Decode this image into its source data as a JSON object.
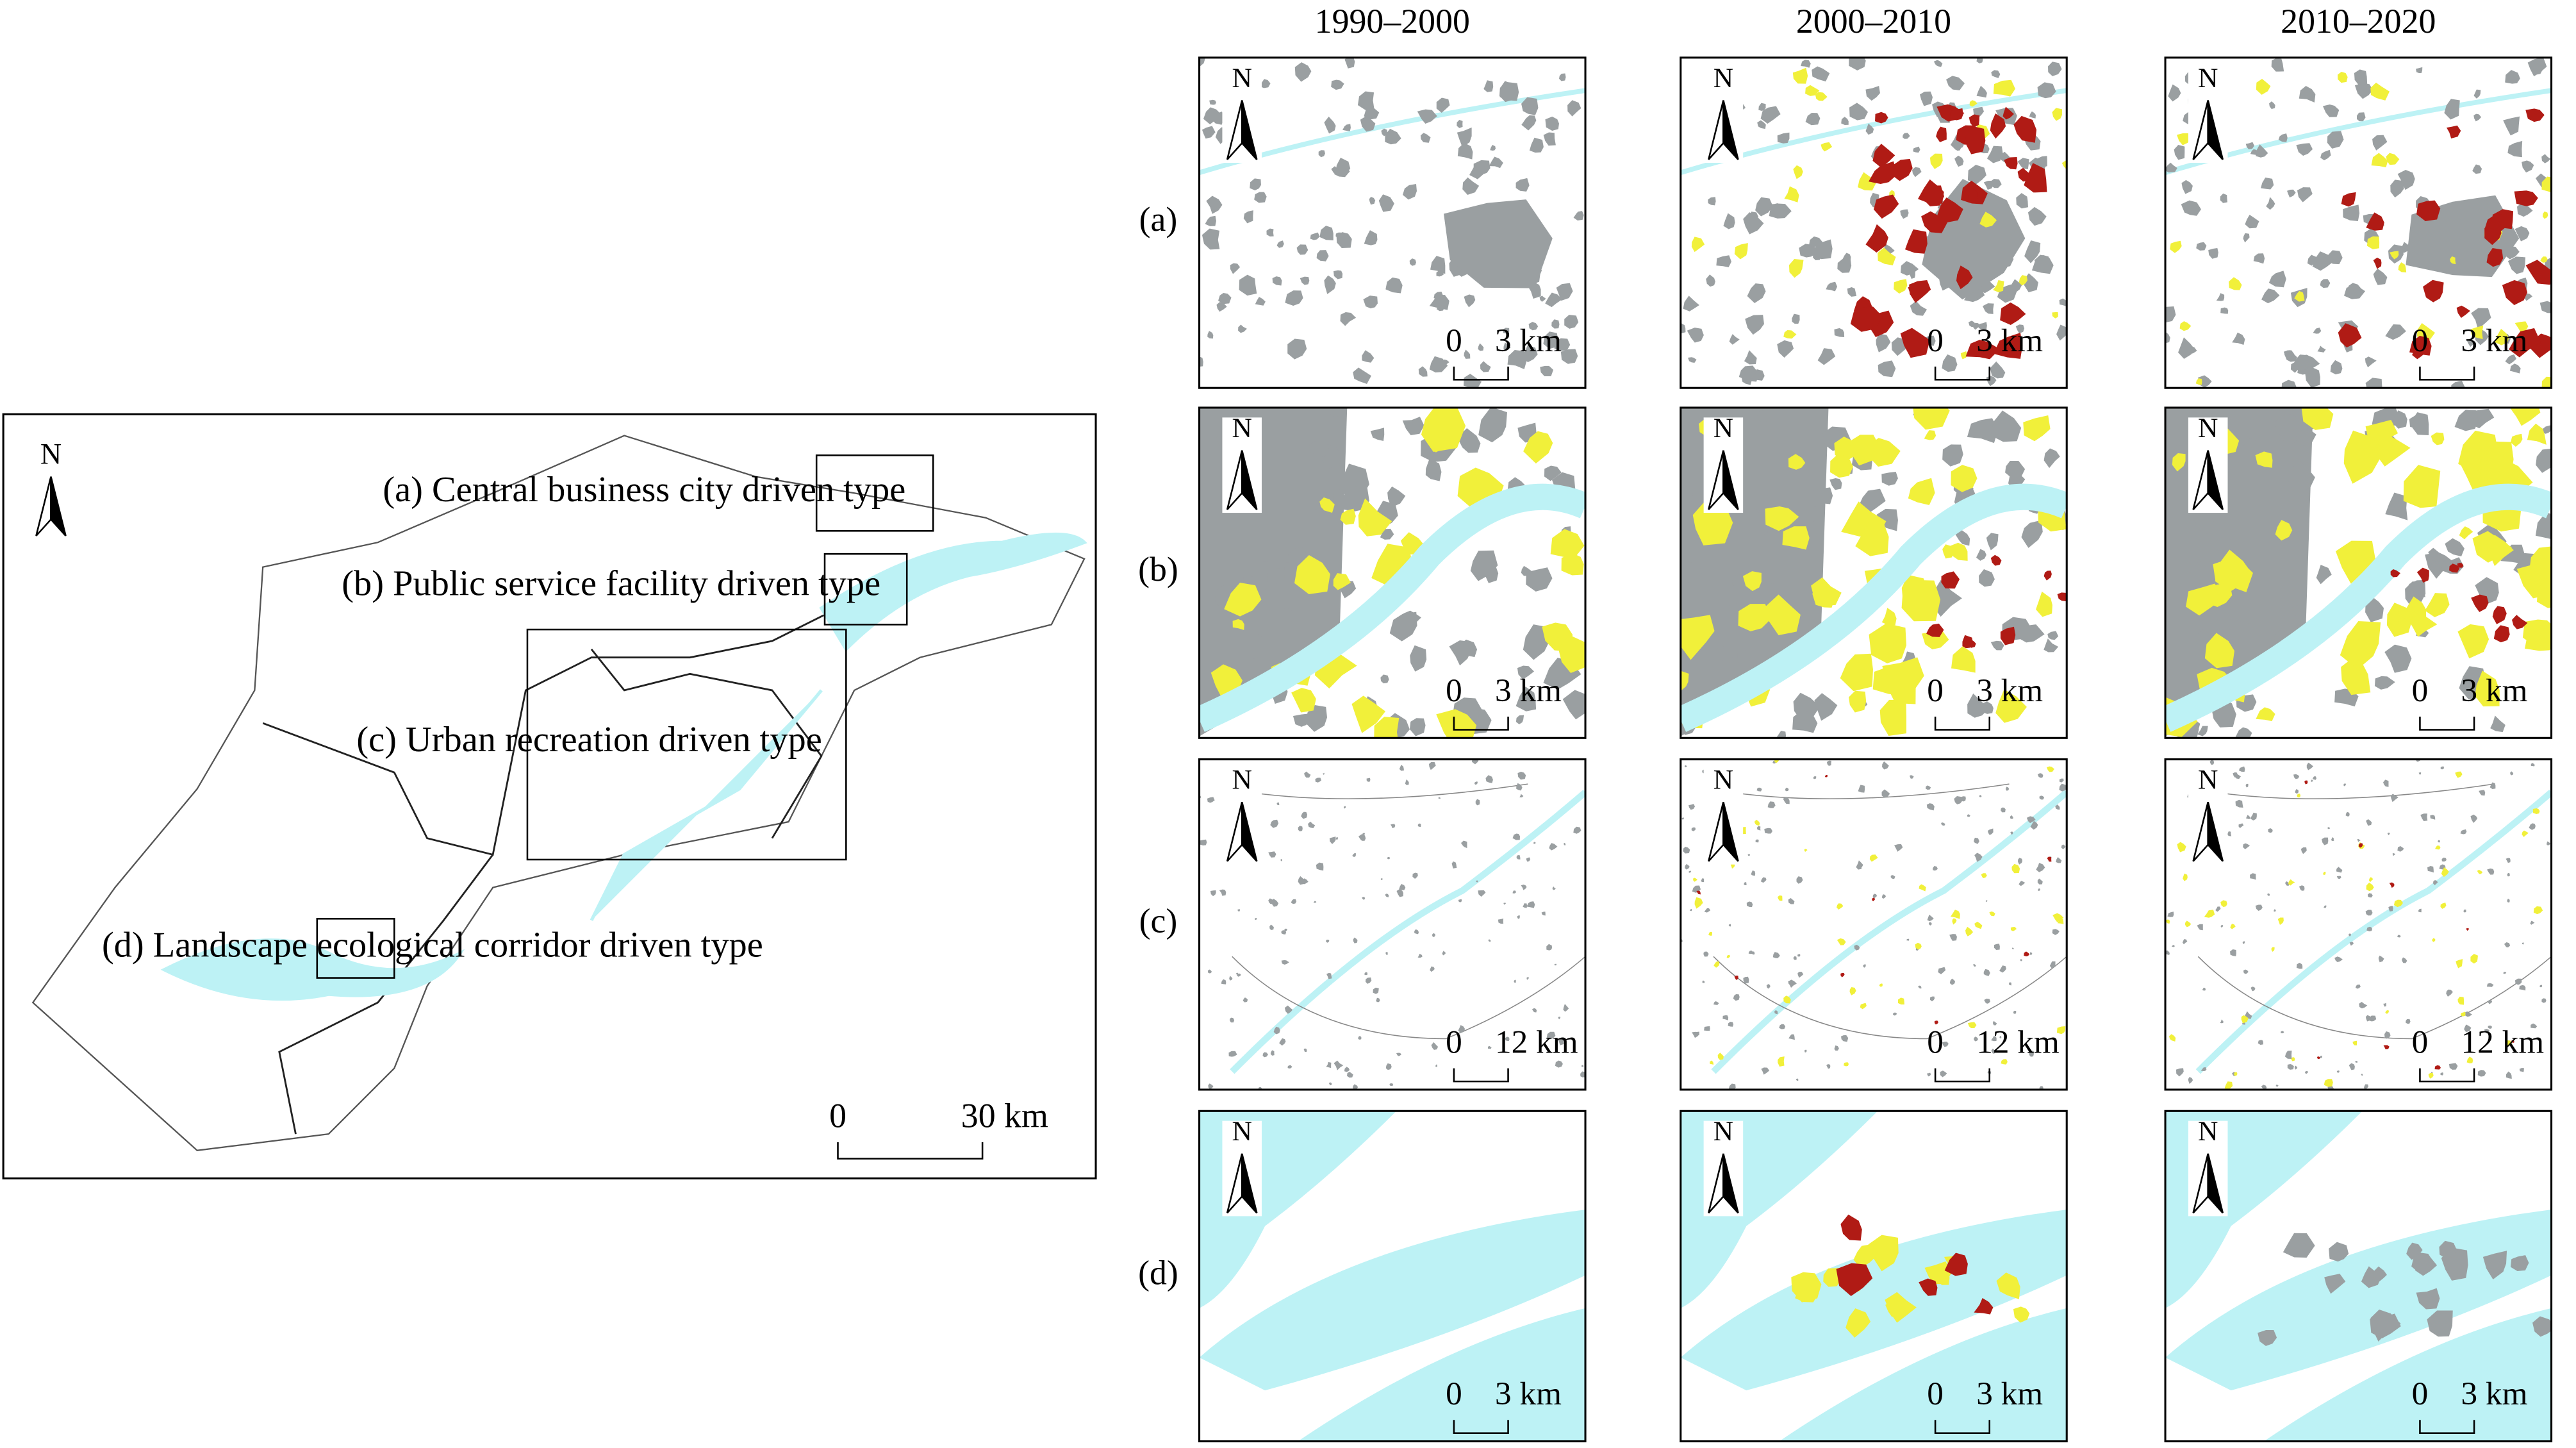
{
  "overview": {
    "north": "N",
    "labels": [
      "(a) Central business city driven type",
      "(b) Public service facility driven type",
      "(c) Urban recreation driven type",
      "(d) Landscape ecological corridor driven type"
    ],
    "scale": {
      "zero": "0",
      "end": "30 km"
    }
  },
  "columns": [
    "1990–2000",
    "2000–2010",
    "2010–2020"
  ],
  "rows": [
    {
      "label": "(a)",
      "scale_end": "3 km"
    },
    {
      "label": "(b)",
      "scale_end": "3 km"
    },
    {
      "label": "(c)",
      "scale_end": "12 km"
    },
    {
      "label": "(d)",
      "scale_end": "3 km"
    }
  ],
  "north": "N",
  "scale_zero": "0"
}
